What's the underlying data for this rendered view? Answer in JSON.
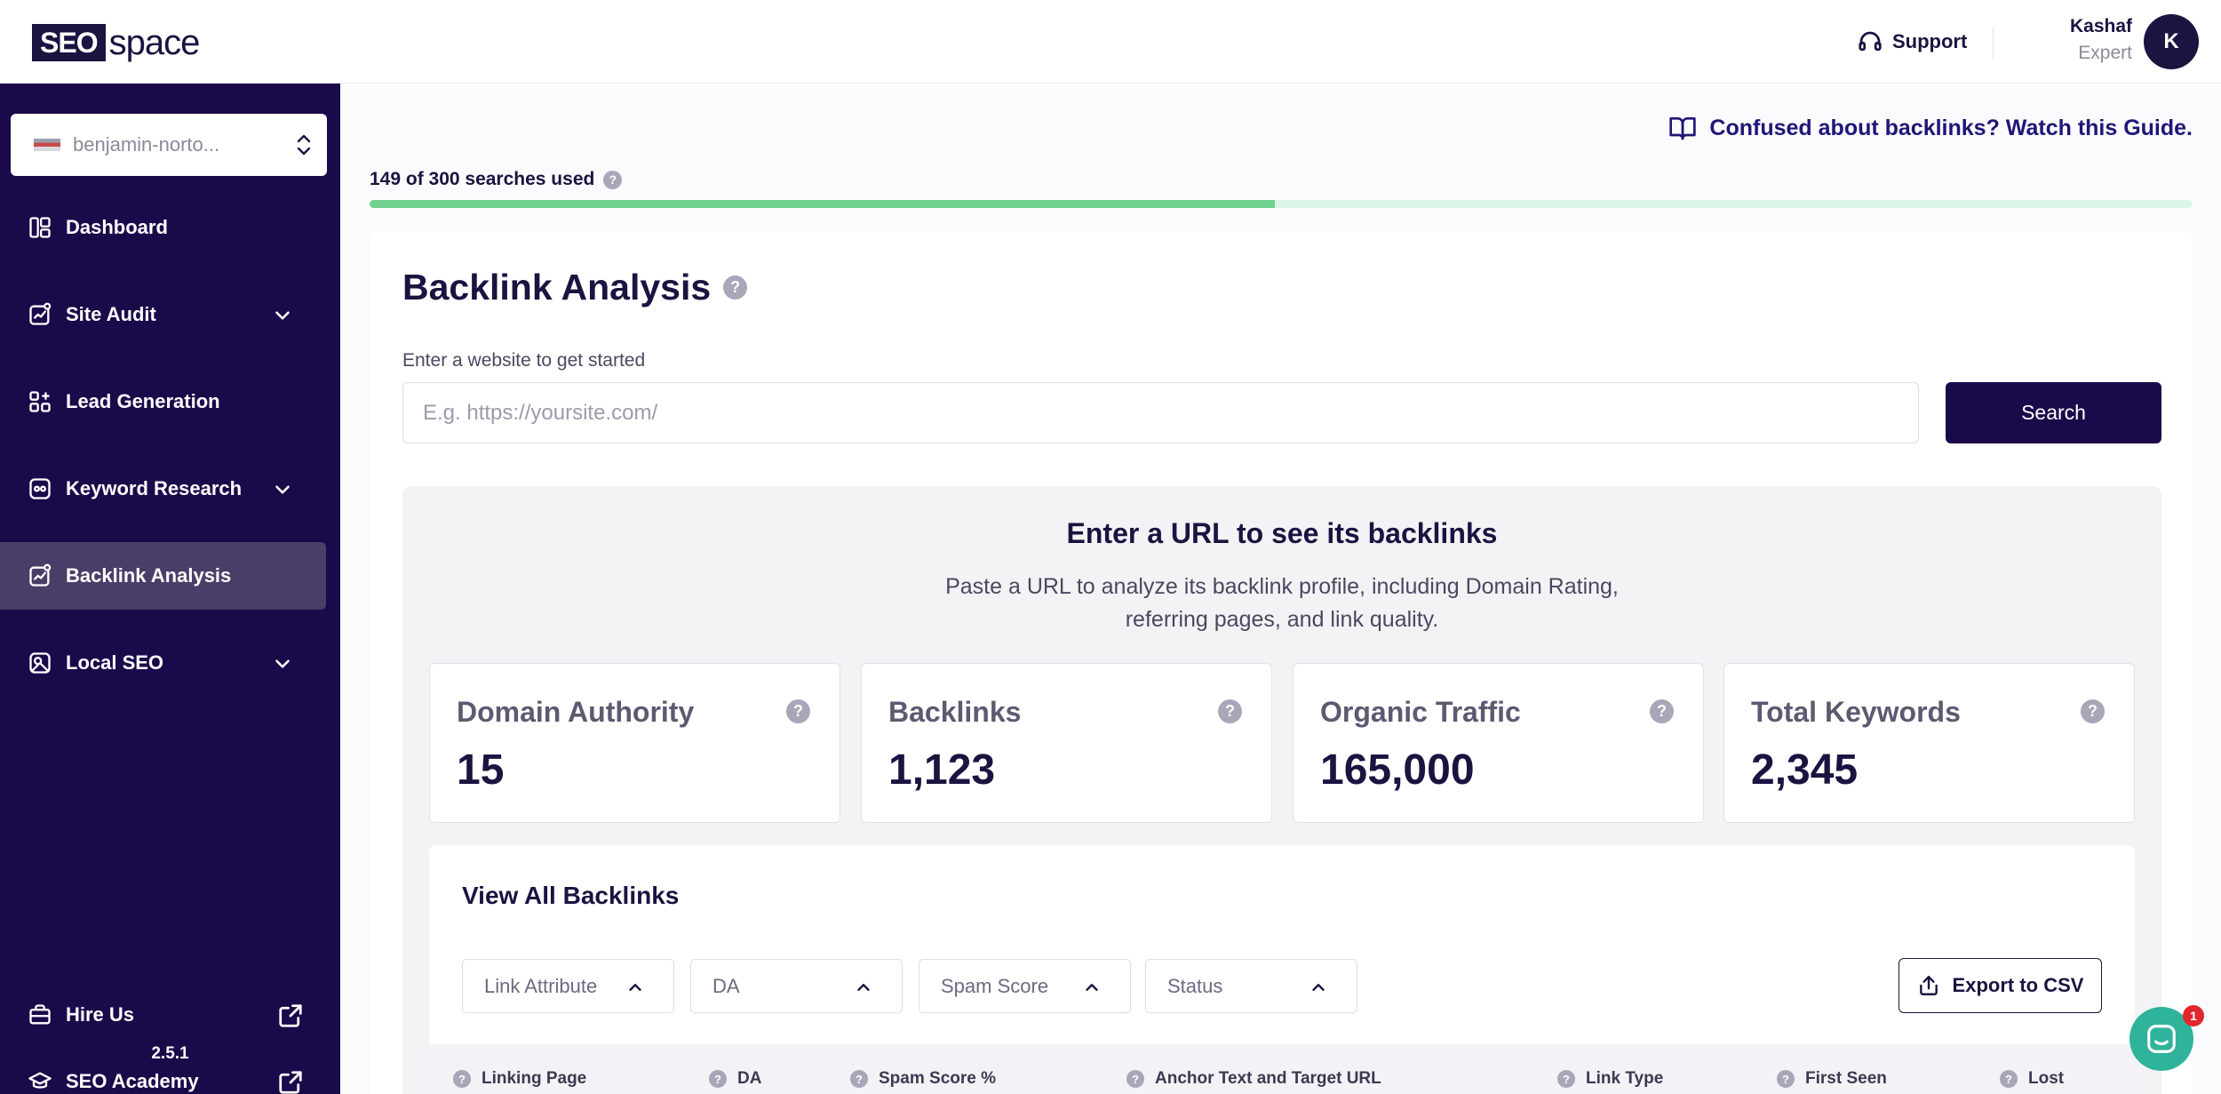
{
  "brand": {
    "logo_boxed": "SEO",
    "logo_rest": "space"
  },
  "header": {
    "support_label": "Support",
    "user_name": "Kashaf",
    "user_role": "Expert",
    "avatar_initial": "K"
  },
  "sidebar": {
    "site_selector": "benjamin-norto...",
    "items": [
      {
        "label": "Dashboard"
      },
      {
        "label": "Site Audit"
      },
      {
        "label": "Lead Generation"
      },
      {
        "label": "Keyword Research"
      },
      {
        "label": "Backlink Analysis"
      },
      {
        "label": "Local SEO"
      }
    ],
    "bottom_items": [
      {
        "label": "Hire Us"
      },
      {
        "label": "SEO Academy"
      }
    ],
    "version": "2.5.1",
    "active_index": 4
  },
  "guide_link": "Confused about backlinks? Watch this Guide.",
  "usage": {
    "text": "149 of 300 searches used",
    "used": 149,
    "total": 300
  },
  "main": {
    "title": "Backlink Analysis",
    "input_label": "Enter a website to get started",
    "input_placeholder": "E.g. https://yoursite.com/",
    "search_button": "Search",
    "empty_title": "Enter a URL to see its backlinks",
    "empty_desc": "Paste a URL to analyze its backlink profile, including Domain Rating, referring pages, and link quality."
  },
  "stats": [
    {
      "label": "Domain Authority",
      "value": "15"
    },
    {
      "label": "Backlinks",
      "value": "1,123"
    },
    {
      "label": "Organic Traffic",
      "value": "165,000"
    },
    {
      "label": "Total Keywords",
      "value": "2,345"
    }
  ],
  "backlinks": {
    "title": "View All Backlinks",
    "filters": [
      "Link Attribute",
      "DA",
      "Spam Score",
      "Status"
    ],
    "export_label": "Export to CSV",
    "columns": [
      "Linking Page",
      "DA",
      "Spam Score %",
      "Anchor Text and Target URL",
      "Link Type",
      "First Seen",
      "Lost"
    ]
  },
  "chat": {
    "badge_count": "1"
  },
  "colors": {
    "sidebar_bg": "#1b0a4a",
    "sidebar_active": "#4a3e69",
    "primary_text": "#1b1340",
    "guide_link": "#1f1677",
    "progress_fill": "#6fd18e",
    "progress_track": "#dcf5e6",
    "chat_button": "#2fb39a"
  }
}
